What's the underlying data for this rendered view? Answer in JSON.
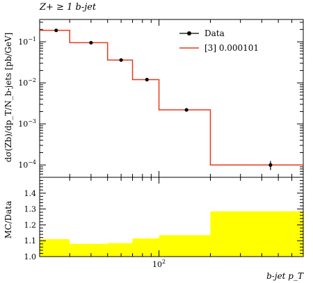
{
  "chart_data": [
    {
      "type": "line",
      "title": "Z+ ≥ 1 b-jet",
      "ylabel": "dσ(Zb)/dp_T/N_b-jets [pb/GeV]",
      "xlabel": "b-jet p_T",
      "xscale": "log",
      "yscale": "log",
      "xlim": [
        20,
        700
      ],
      "ylim": [
        5e-05,
        0.35
      ],
      "y_ticks": [
        {
          "value": 0.0001,
          "label": "10^-4"
        },
        {
          "value": 0.001,
          "label": "10^-3"
        },
        {
          "value": 0.01,
          "label": "10^-2"
        },
        {
          "value": 0.1,
          "label": "10^-1"
        }
      ],
      "legend_position": "top-right",
      "series": [
        {
          "name": "Data",
          "kind": "points",
          "color": "#000000",
          "points": [
            {
              "x": 25,
              "y": 0.19,
              "yerr": 0.008
            },
            {
              "x": 40,
              "y": 0.095,
              "yerr": 0.004
            },
            {
              "x": 60,
              "y": 0.036,
              "yerr": 0.0015
            },
            {
              "x": 85,
              "y": 0.012,
              "yerr": 0.0007
            },
            {
              "x": 145,
              "y": 0.0022,
              "yerr": 0.00015
            },
            {
              "x": 450,
              "y": 0.0001,
              "yerr": 2.5e-05
            }
          ]
        },
        {
          "name": "[3] 0.000101",
          "kind": "histogram",
          "color": "#e8381a",
          "bin_edges": [
            20,
            30,
            50,
            70,
            100,
            200,
            700
          ],
          "values": [
            0.19,
            0.095,
            0.036,
            0.012,
            0.0022,
            0.0001
          ]
        }
      ]
    },
    {
      "type": "area",
      "ylabel": "MC/Data",
      "xscale": "log",
      "xlim": [
        20,
        700
      ],
      "ylim": [
        1.0,
        1.5
      ],
      "y_ticks": [
        1.0,
        1.1,
        1.2,
        1.3,
        1.4
      ],
      "x_ticks": [
        {
          "value": 100,
          "label": "10^2"
        }
      ],
      "band_color": "#ffff00",
      "bin_edges": [
        20,
        30,
        50,
        70,
        100,
        200,
        700
      ],
      "values": [
        1.11,
        1.08,
        1.085,
        1.115,
        1.135,
        1.285
      ]
    }
  ]
}
